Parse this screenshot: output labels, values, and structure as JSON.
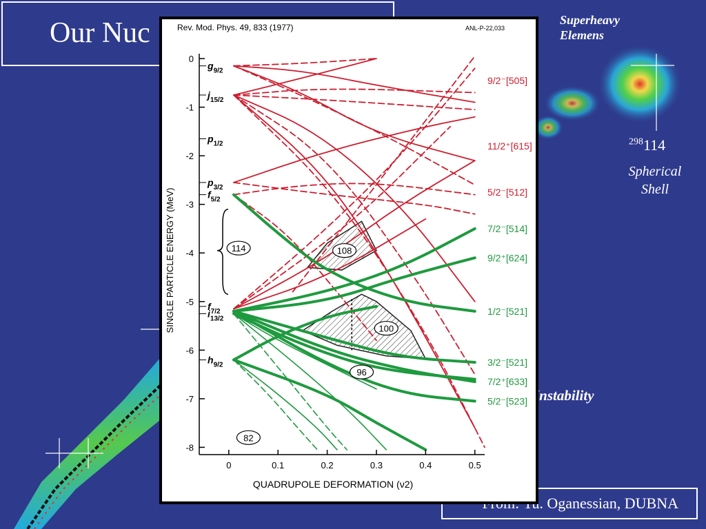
{
  "slide": {
    "title": "Our Nuc",
    "she_title": "Superheavy Elemens",
    "isotope_mass": "298",
    "isotope_z": "114",
    "shell_label": "Spherical Shell",
    "instability_label": "Instability",
    "credit": "From: Yu. Oganessian,  DUBNA"
  },
  "chart_data": {
    "type": "line",
    "citation": "Rev. Mod. Phys. 49, 833 (1977)",
    "report_id": "ANL-P-22,033",
    "xlabel": "QUADRUPOLE DEFORMATION (ν2)",
    "ylabel": "SINGLE PARTICLE ENERGY (MeV)",
    "xlim": [
      -0.06,
      0.52
    ],
    "ylim": [
      -8.15,
      0.1
    ],
    "x_ticks": [
      0,
      0.1,
      0.2,
      0.3,
      0.4,
      0.5
    ],
    "x_tick_labels": [
      "0",
      "0.1",
      "0.2",
      "0.3",
      "0.4",
      "0.5"
    ],
    "y_ticks": [
      0,
      -1,
      -2,
      -3,
      -4,
      -5,
      -6,
      -7,
      -8
    ],
    "y_tick_labels": [
      "0",
      "-1",
      "-2",
      "-3",
      "-4",
      "-5",
      "-6",
      "-7",
      "-8"
    ],
    "spherical_levels": [
      {
        "label": "g",
        "sub": "9/2",
        "y": -0.15
      },
      {
        "label": "j",
        "sub": "15/2",
        "y": -0.75
      },
      {
        "label": "p",
        "sub": "1/2",
        "y": -1.65
      },
      {
        "label": "p",
        "sub": "3/2",
        "y": -2.55
      },
      {
        "label": "f",
        "sub": "5/2",
        "y": -2.8
      },
      {
        "label": "f",
        "sub": "7/2",
        "y": -5.1
      },
      {
        "label": "i",
        "sub": "13/2",
        "y": -5.25
      },
      {
        "label": "h",
        "sub": "9/2",
        "y": -6.2
      }
    ],
    "gap_labels": [
      {
        "text": "114",
        "x": 0.02,
        "y": -3.9
      },
      {
        "text": "108",
        "x": 0.235,
        "y": -3.95
      },
      {
        "text": "100",
        "x": 0.32,
        "y": -5.55
      },
      {
        "text": "96",
        "x": 0.27,
        "y": -6.45
      },
      {
        "text": "82",
        "x": 0.04,
        "y": -7.8
      }
    ],
    "level_labels": [
      {
        "text": "9/2⁻[505]",
        "y": -0.45,
        "color": "#cc1f2f"
      },
      {
        "text": "11/2⁺[615]",
        "y": -1.8,
        "color": "#cc1f2f"
      },
      {
        "text": "5/2⁻[512]",
        "y": -2.75,
        "color": "#cc1f2f"
      },
      {
        "text": "7/2⁻[514]",
        "y": -3.5,
        "color": "#1f9a3f"
      },
      {
        "text": "9/2⁺[624]",
        "y": -4.1,
        "color": "#1f9a3f"
      },
      {
        "text": "1/2⁻[521]",
        "y": -5.2,
        "color": "#1f9a3f"
      },
      {
        "text": "3/2⁻[521]",
        "y": -6.25,
        "color": "#1f9a3f"
      },
      {
        "text": "7/2⁺[633]",
        "y": -6.65,
        "color": "#1f9a3f"
      },
      {
        "text": "5/2⁻[523]",
        "y": -7.05,
        "color": "#1f9a3f"
      }
    ],
    "hatched_regions": [
      {
        "points": [
          [
            0.16,
            -4.3
          ],
          [
            0.2,
            -3.8
          ],
          [
            0.27,
            -3.35
          ],
          [
            0.3,
            -3.95
          ],
          [
            0.23,
            -4.35
          ]
        ]
      },
      {
        "points": [
          [
            0.15,
            -5.6
          ],
          [
            0.21,
            -5.2
          ],
          [
            0.27,
            -4.85
          ],
          [
            0.3,
            -5.0
          ],
          [
            0.37,
            -5.6
          ],
          [
            0.4,
            -6.18
          ],
          [
            0.32,
            -6.12
          ],
          [
            0.22,
            -5.9
          ]
        ]
      }
    ],
    "colors": {
      "red": "#cc1f2f",
      "green": "#1f9a3f"
    },
    "series": [
      {
        "color": "#cc1f2f",
        "dash": false,
        "points": [
          [
            0.01,
            -0.15
          ],
          [
            0.15,
            -0.7
          ],
          [
            0.3,
            -1.55
          ],
          [
            0.5,
            -2.1
          ]
        ]
      },
      {
        "color": "#cc1f2f",
        "dash": true,
        "points": [
          [
            0.01,
            -0.15
          ],
          [
            0.15,
            -0.1
          ],
          [
            0.3,
            0.0
          ]
        ]
      },
      {
        "color": "#cc1f2f",
        "dash": false,
        "points": [
          [
            0.01,
            -0.15
          ],
          [
            0.15,
            -0.25
          ],
          [
            0.3,
            -0.55
          ],
          [
            0.5,
            -0.9
          ]
        ]
      },
      {
        "color": "#cc1f2f",
        "dash": true,
        "points": [
          [
            0.01,
            -0.15
          ],
          [
            0.18,
            -0.9
          ],
          [
            0.34,
            -1.7
          ],
          [
            0.5,
            -2.6
          ]
        ]
      },
      {
        "color": "#cc1f2f",
        "dash": false,
        "points": [
          [
            0.01,
            -0.75
          ],
          [
            0.15,
            -0.4
          ],
          [
            0.3,
            0.0
          ]
        ]
      },
      {
        "color": "#cc1f2f",
        "dash": true,
        "points": [
          [
            0.01,
            -0.75
          ],
          [
            0.2,
            -0.85
          ],
          [
            0.5,
            -1.05
          ]
        ]
      },
      {
        "color": "#cc1f2f",
        "dash": false,
        "points": [
          [
            0.01,
            -0.75
          ],
          [
            0.18,
            -1.5
          ],
          [
            0.35,
            -3.0
          ],
          [
            0.5,
            -5.0
          ]
        ]
      },
      {
        "color": "#cc1f2f",
        "dash": true,
        "points": [
          [
            0.01,
            -0.75
          ],
          [
            0.2,
            -2.0
          ],
          [
            0.38,
            -4.5
          ],
          [
            0.5,
            -6.5
          ]
        ]
      },
      {
        "color": "#cc1f2f",
        "dash": false,
        "points": [
          [
            0.01,
            -0.75
          ],
          [
            0.2,
            -2.4
          ],
          [
            0.35,
            -4.8
          ],
          [
            0.5,
            -7.6
          ]
        ]
      },
      {
        "color": "#cc1f2f",
        "dash": true,
        "points": [
          [
            0.01,
            -0.75
          ],
          [
            0.22,
            -2.8
          ],
          [
            0.4,
            -5.6
          ],
          [
            0.52,
            -8.0
          ]
        ]
      },
      {
        "color": "#cc1f2f",
        "dash": true,
        "points": [
          [
            0.01,
            -0.75
          ],
          [
            0.2,
            -0.6
          ],
          [
            0.5,
            -0.7
          ]
        ]
      },
      {
        "color": "#cc1f2f",
        "dash": false,
        "points": [
          [
            0.01,
            -2.55
          ],
          [
            0.2,
            -1.9
          ],
          [
            0.4,
            -1.4
          ],
          [
            0.5,
            -1.2
          ]
        ]
      },
      {
        "color": "#cc1f2f",
        "dash": true,
        "points": [
          [
            0.01,
            -2.55
          ],
          [
            0.2,
            -2.8
          ],
          [
            0.4,
            -3.0
          ],
          [
            0.5,
            -3.2
          ]
        ]
      },
      {
        "color": "#cc1f2f",
        "dash": true,
        "points": [
          [
            0.01,
            -2.8
          ],
          [
            0.15,
            -2.6
          ],
          [
            0.3,
            -2.55
          ],
          [
            0.5,
            -2.8
          ]
        ]
      },
      {
        "color": "#cc1f2f",
        "dash": true,
        "points": [
          [
            0.01,
            -2.8
          ],
          [
            0.12,
            -3.6
          ],
          [
            0.22,
            -4.8
          ],
          [
            0.3,
            -5.8
          ]
        ]
      },
      {
        "color": "#cc1f2f",
        "dash": false,
        "points": [
          [
            0.01,
            -5.15
          ],
          [
            0.2,
            -4.1
          ],
          [
            0.35,
            -3.0
          ],
          [
            0.5,
            -2.1
          ]
        ]
      },
      {
        "color": "#cc1f2f",
        "dash": true,
        "points": [
          [
            0.01,
            -5.15
          ],
          [
            0.2,
            -3.5
          ],
          [
            0.35,
            -2.0
          ],
          [
            0.5,
            -0.2
          ]
        ]
      },
      {
        "color": "#cc1f2f",
        "dash": false,
        "points": [
          [
            0.01,
            -5.15
          ],
          [
            0.2,
            -4.5
          ],
          [
            0.4,
            -3.3
          ]
        ]
      },
      {
        "color": "#cc1f2f",
        "dash": true,
        "points": [
          [
            0.01,
            -5.15
          ],
          [
            0.25,
            -3.4
          ],
          [
            0.45,
            -1.4
          ]
        ]
      },
      {
        "color": "#cc1f2f",
        "dash": true,
        "points": [
          [
            0.13,
            -4.8
          ],
          [
            0.3,
            -2.6
          ],
          [
            0.5,
            0.05
          ]
        ]
      },
      {
        "color": "#1f9a3f",
        "dash": false,
        "width": 4,
        "points": [
          [
            0.01,
            -2.8
          ],
          [
            0.1,
            -3.6
          ],
          [
            0.2,
            -4.4
          ],
          [
            0.35,
            -5.0
          ],
          [
            0.5,
            -5.2
          ]
        ]
      },
      {
        "color": "#1f9a3f",
        "dash": false,
        "width": 4,
        "points": [
          [
            0.01,
            -5.2
          ],
          [
            0.2,
            -4.8
          ],
          [
            0.35,
            -4.3
          ],
          [
            0.5,
            -3.5
          ]
        ]
      },
      {
        "color": "#1f9a3f",
        "dash": false,
        "width": 4,
        "points": [
          [
            0.01,
            -5.2
          ],
          [
            0.2,
            -5.0
          ],
          [
            0.35,
            -4.5
          ],
          [
            0.5,
            -4.1
          ]
        ]
      },
      {
        "color": "#1f9a3f",
        "dash": false,
        "width": 4,
        "points": [
          [
            0.01,
            -5.2
          ],
          [
            0.2,
            -5.75
          ],
          [
            0.35,
            -6.15
          ],
          [
            0.5,
            -6.25
          ]
        ]
      },
      {
        "color": "#1f9a3f",
        "dash": false,
        "width": 4,
        "points": [
          [
            0.01,
            -5.2
          ],
          [
            0.2,
            -6.0
          ],
          [
            0.35,
            -6.4
          ],
          [
            0.5,
            -6.65
          ]
        ]
      },
      {
        "color": "#1f9a3f",
        "dash": false,
        "width": 4,
        "points": [
          [
            0.01,
            -5.2
          ],
          [
            0.2,
            -6.3
          ],
          [
            0.35,
            -6.9
          ],
          [
            0.5,
            -7.05
          ]
        ]
      },
      {
        "color": "#1f9a3f",
        "dash": false,
        "width": 4,
        "points": [
          [
            0.01,
            -6.2
          ],
          [
            0.2,
            -6.9
          ],
          [
            0.3,
            -7.5
          ],
          [
            0.4,
            -8.05
          ]
        ]
      },
      {
        "color": "#1f9a3f",
        "dash": false,
        "width": 4,
        "points": [
          [
            0.01,
            -6.2
          ],
          [
            0.1,
            -5.7
          ],
          [
            0.2,
            -5.3
          ],
          [
            0.3,
            -5.1
          ]
        ]
      },
      {
        "color": "#1f9a3f",
        "dash": false,
        "width": 4,
        "points": [
          [
            0.01,
            -5.25
          ],
          [
            0.15,
            -5.9
          ],
          [
            0.3,
            -6.4
          ],
          [
            0.5,
            -6.6
          ]
        ]
      },
      {
        "color": "#1f9a3f",
        "dash": false,
        "width": 1.6,
        "points": [
          [
            0.01,
            -5.25
          ],
          [
            0.15,
            -6.4
          ],
          [
            0.25,
            -7.3
          ],
          [
            0.32,
            -8.05
          ]
        ]
      },
      {
        "color": "#1f9a3f",
        "dash": true,
        "width": 1.6,
        "points": [
          [
            0.01,
            -5.25
          ],
          [
            0.12,
            -6.6
          ],
          [
            0.2,
            -7.6
          ],
          [
            0.24,
            -8.05
          ]
        ]
      },
      {
        "color": "#1f9a3f",
        "dash": false,
        "width": 1.6,
        "points": [
          [
            0.01,
            -6.2
          ],
          [
            0.1,
            -6.9
          ],
          [
            0.18,
            -7.6
          ],
          [
            0.22,
            -8.05
          ]
        ]
      },
      {
        "color": "#1f9a3f",
        "dash": true,
        "width": 1.6,
        "points": [
          [
            0.01,
            -6.2
          ],
          [
            0.08,
            -6.9
          ],
          [
            0.14,
            -7.6
          ],
          [
            0.18,
            -8.05
          ]
        ]
      },
      {
        "color": "#1f9a3f",
        "dash": false,
        "width": 1.6,
        "points": [
          [
            0.01,
            -5.25
          ],
          [
            0.1,
            -5.8
          ],
          [
            0.2,
            -6.3
          ],
          [
            0.3,
            -6.8
          ]
        ]
      }
    ]
  }
}
